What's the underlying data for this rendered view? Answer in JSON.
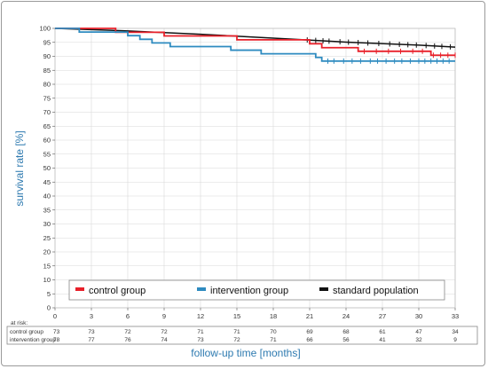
{
  "chart_data": {
    "type": "line",
    "ylabel": "survival rate [%]",
    "xlabel": "follow-up time [months]",
    "xlim": [
      0,
      33
    ],
    "ylim": [
      0,
      100
    ],
    "xticks": [
      0,
      3,
      6,
      9,
      12,
      15,
      18,
      21,
      24,
      27,
      30,
      33
    ],
    "yticks": [
      0,
      5,
      10,
      15,
      20,
      25,
      30,
      35,
      40,
      45,
      50,
      55,
      60,
      65,
      70,
      75,
      80,
      85,
      90,
      95,
      100
    ],
    "legend_position": "bottom",
    "series": [
      {
        "name": "control group",
        "color": "#e8202a",
        "step": true,
        "points": [
          [
            0,
            100
          ],
          [
            5,
            100
          ],
          [
            5,
            98.6
          ],
          [
            9,
            98.6
          ],
          [
            9,
            97.3
          ],
          [
            15,
            97.3
          ],
          [
            15,
            95.9
          ],
          [
            21,
            95.9
          ],
          [
            21,
            94.5
          ],
          [
            22,
            94.5
          ],
          [
            22,
            93.1
          ],
          [
            25,
            93.1
          ],
          [
            25,
            91.8
          ],
          [
            31,
            91.8
          ],
          [
            31,
            90.4
          ],
          [
            33,
            90.4
          ]
        ],
        "censor_x": [
          25.5,
          26.5,
          27.5,
          28.5,
          29.5,
          30.3,
          31.2,
          31.8,
          32.4,
          33
        ]
      },
      {
        "name": "intervention group",
        "color": "#2e8bc0",
        "step": true,
        "points": [
          [
            0,
            100
          ],
          [
            2,
            100
          ],
          [
            2,
            98.7
          ],
          [
            6,
            98.7
          ],
          [
            6,
            97.4
          ],
          [
            7,
            97.4
          ],
          [
            7,
            96.1
          ],
          [
            8,
            96.1
          ],
          [
            8,
            94.8
          ],
          [
            9.5,
            94.8
          ],
          [
            9.5,
            93.5
          ],
          [
            14.5,
            93.5
          ],
          [
            14.5,
            92.2
          ],
          [
            17,
            92.2
          ],
          [
            17,
            90.9
          ],
          [
            21.5,
            90.9
          ],
          [
            21.5,
            89.6
          ],
          [
            22,
            89.6
          ],
          [
            22,
            88.3
          ],
          [
            33,
            88.3
          ]
        ],
        "censor_x": [
          22.5,
          23,
          23.8,
          24.5,
          25.2,
          26,
          26.6,
          27.3,
          28,
          28.6,
          29.3,
          30,
          30.5,
          31,
          31.5,
          32,
          32.5
        ]
      },
      {
        "name": "standard population",
        "color": "#111111",
        "step": false,
        "points": [
          [
            0,
            100
          ],
          [
            6,
            99.1
          ],
          [
            12,
            97.9
          ],
          [
            18,
            96.5
          ],
          [
            24,
            95.1
          ],
          [
            30,
            94
          ],
          [
            33,
            93.3
          ]
        ],
        "censor_x": [
          20.8,
          21.5,
          22.1,
          22.6,
          23.5,
          24.2,
          25,
          25.8,
          26.7,
          27.6,
          28.4,
          29.1,
          29.8,
          30.6,
          31.3,
          31.9,
          32.6
        ]
      }
    ]
  },
  "at_risk": {
    "title": "at risk:",
    "times": [
      0,
      3,
      6,
      9,
      12,
      15,
      18,
      21,
      24,
      27,
      30,
      33
    ],
    "rows": [
      {
        "label": "control group",
        "values": [
          "73",
          "73",
          "72",
          "72",
          "71",
          "71",
          "70",
          "69",
          "68",
          "61",
          "47",
          "34"
        ]
      },
      {
        "label": "intervention group",
        "values": [
          "78",
          "77",
          "76",
          "74",
          "73",
          "72",
          "71",
          "66",
          "56",
          "41",
          "32",
          "9"
        ]
      }
    ]
  }
}
